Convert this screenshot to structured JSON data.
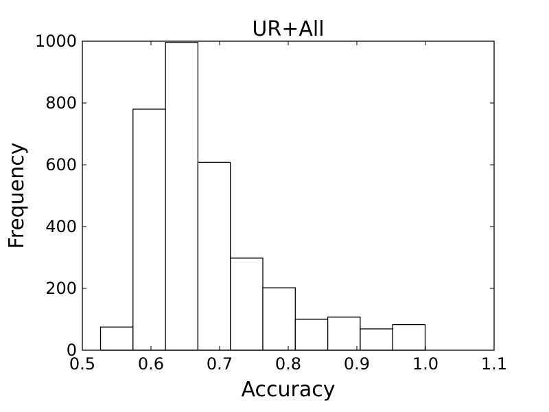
{
  "chart_data": {
    "type": "bar",
    "subtype": "histogram",
    "title": "UR+All",
    "xlabel": "Accuracy",
    "ylabel": "Frequency",
    "xlim": [
      0.5,
      1.1
    ],
    "ylim": [
      0,
      1000
    ],
    "xticks": [
      "0.5",
      "0.6",
      "0.7",
      "0.8",
      "0.9",
      "1.0",
      "1.1"
    ],
    "yticks": [
      "0",
      "200",
      "400",
      "600",
      "800",
      "1000"
    ],
    "bins": [
      {
        "x0": 0.5265,
        "x1": 0.5738,
        "value": 75
      },
      {
        "x0": 0.5738,
        "x1": 0.6211,
        "value": 780
      },
      {
        "x0": 0.6211,
        "x1": 0.6684,
        "value": 996
      },
      {
        "x0": 0.6684,
        "x1": 0.7157,
        "value": 608
      },
      {
        "x0": 0.7157,
        "x1": 0.763,
        "value": 298
      },
      {
        "x0": 0.763,
        "x1": 0.8103,
        "value": 202
      },
      {
        "x0": 0.8103,
        "x1": 0.8576,
        "value": 100
      },
      {
        "x0": 0.8576,
        "x1": 0.9049,
        "value": 107
      },
      {
        "x0": 0.9049,
        "x1": 0.9522,
        "value": 69
      },
      {
        "x0": 0.9522,
        "x1": 0.9995,
        "value": 83
      }
    ],
    "grid": false,
    "colors": {
      "bar_fill": "#ffffff",
      "bar_edge": "#000000"
    }
  }
}
